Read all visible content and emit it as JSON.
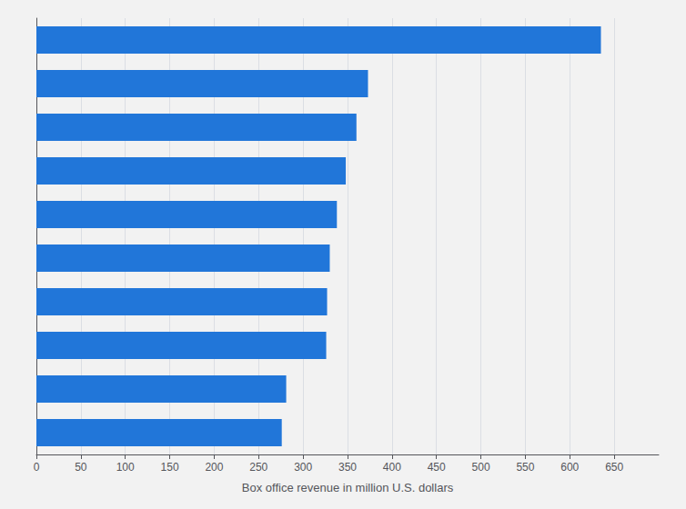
{
  "chart_data": {
    "type": "bar",
    "orientation": "horizontal",
    "xlabel": "Box office revenue in million U.S. dollars",
    "categories": [
      null,
      null,
      null,
      null,
      null,
      null,
      null,
      null,
      null,
      null
    ],
    "values": [
      635,
      373,
      360,
      348,
      338,
      330,
      327,
      326,
      281,
      276
    ],
    "color": "#2176d9",
    "xlim": [
      0,
      700
    ],
    "xticks": [
      0,
      50,
      100,
      150,
      200,
      250,
      300,
      350,
      400,
      450,
      500,
      550,
      600,
      650
    ],
    "grid": true,
    "tick_labels": "x"
  }
}
